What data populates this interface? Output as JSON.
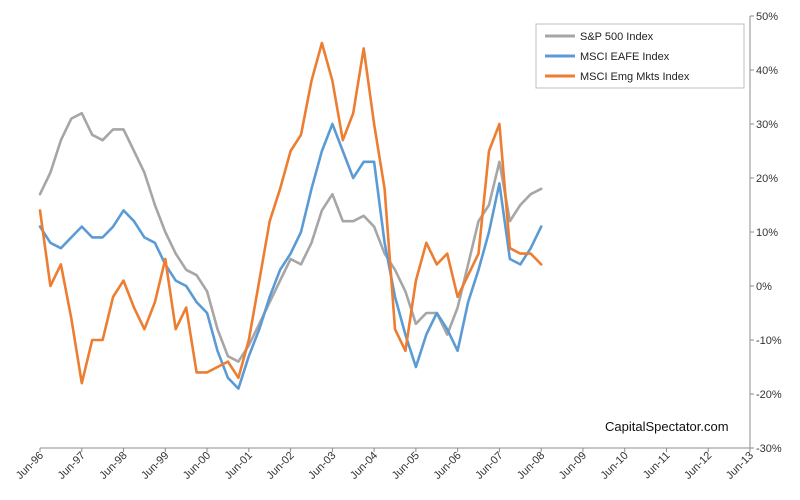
{
  "chart_data": {
    "type": "line",
    "title": "",
    "xlabel": "",
    "ylabel": "",
    "x_start": "1996-06",
    "x_step_months": 3,
    "x_tick_labels": [
      "Jun-96",
      "Jun-97",
      "Jun-98",
      "Jun-99",
      "Jun-00",
      "Jun-01",
      "Jun-02",
      "Jun-03",
      "Jun-04",
      "Jun-05",
      "Jun-06",
      "Jun-07",
      "Jun-08",
      "Jun-09",
      "Jun-10",
      "Jun-11",
      "Jun-12",
      "Jun-13"
    ],
    "y_ticks": [
      -30,
      -20,
      -10,
      0,
      10,
      20,
      30,
      40,
      50
    ],
    "y_tick_labels": [
      "-30%",
      "-20%",
      "-10%",
      "0%",
      "10%",
      "20%",
      "30%",
      "40%",
      "50%"
    ],
    "ylim": [
      -30,
      50
    ],
    "y_axis_side": "right",
    "grid": false,
    "legend": "top-right",
    "watermark": "CapitalSpectator.com",
    "series": [
      {
        "name": "S&P 500 Index",
        "color": "#a6a6a6",
        "values": [
          17,
          21,
          27,
          31,
          32,
          28,
          27,
          29,
          29,
          25,
          21,
          15,
          10,
          6,
          3,
          2,
          -1,
          -8,
          -13,
          -14,
          -11,
          -7,
          -3,
          1,
          5,
          4,
          8,
          14,
          17,
          12,
          12,
          13,
          11,
          6,
          3,
          -1,
          -7,
          -5,
          -5,
          -9,
          -4,
          4,
          12,
          15,
          23,
          12,
          15,
          17,
          18
        ]
      },
      {
        "name": "MSCI EAFE Index",
        "color": "#5b9bd5",
        "values": [
          11,
          8,
          7,
          9,
          11,
          9,
          9,
          11,
          14,
          12,
          9,
          8,
          4,
          1,
          0,
          -3,
          -5,
          -12,
          -17,
          -19,
          -13,
          -8,
          -2,
          3,
          6,
          10,
          18,
          25,
          30,
          25,
          20,
          23,
          23,
          8,
          -2,
          -9,
          -15,
          -9,
          -5,
          -8,
          -12,
          -3,
          3,
          10,
          19,
          5,
          4,
          7,
          11
        ]
      },
      {
        "name": "MSCI Emg Mkts Index",
        "color": "#ed7d31",
        "values": [
          14,
          0,
          4,
          -6,
          -18,
          -10,
          -10,
          -2,
          1,
          -4,
          -8,
          -3,
          5,
          -8,
          -4,
          -16,
          -16,
          -15,
          -14,
          -17,
          -10,
          1,
          12,
          18,
          25,
          28,
          38,
          45,
          38,
          27,
          32,
          44,
          30,
          18,
          -8,
          -12,
          1,
          8,
          4,
          6,
          -2,
          2,
          6,
          25,
          30,
          7,
          6,
          6,
          4
        ]
      }
    ]
  }
}
